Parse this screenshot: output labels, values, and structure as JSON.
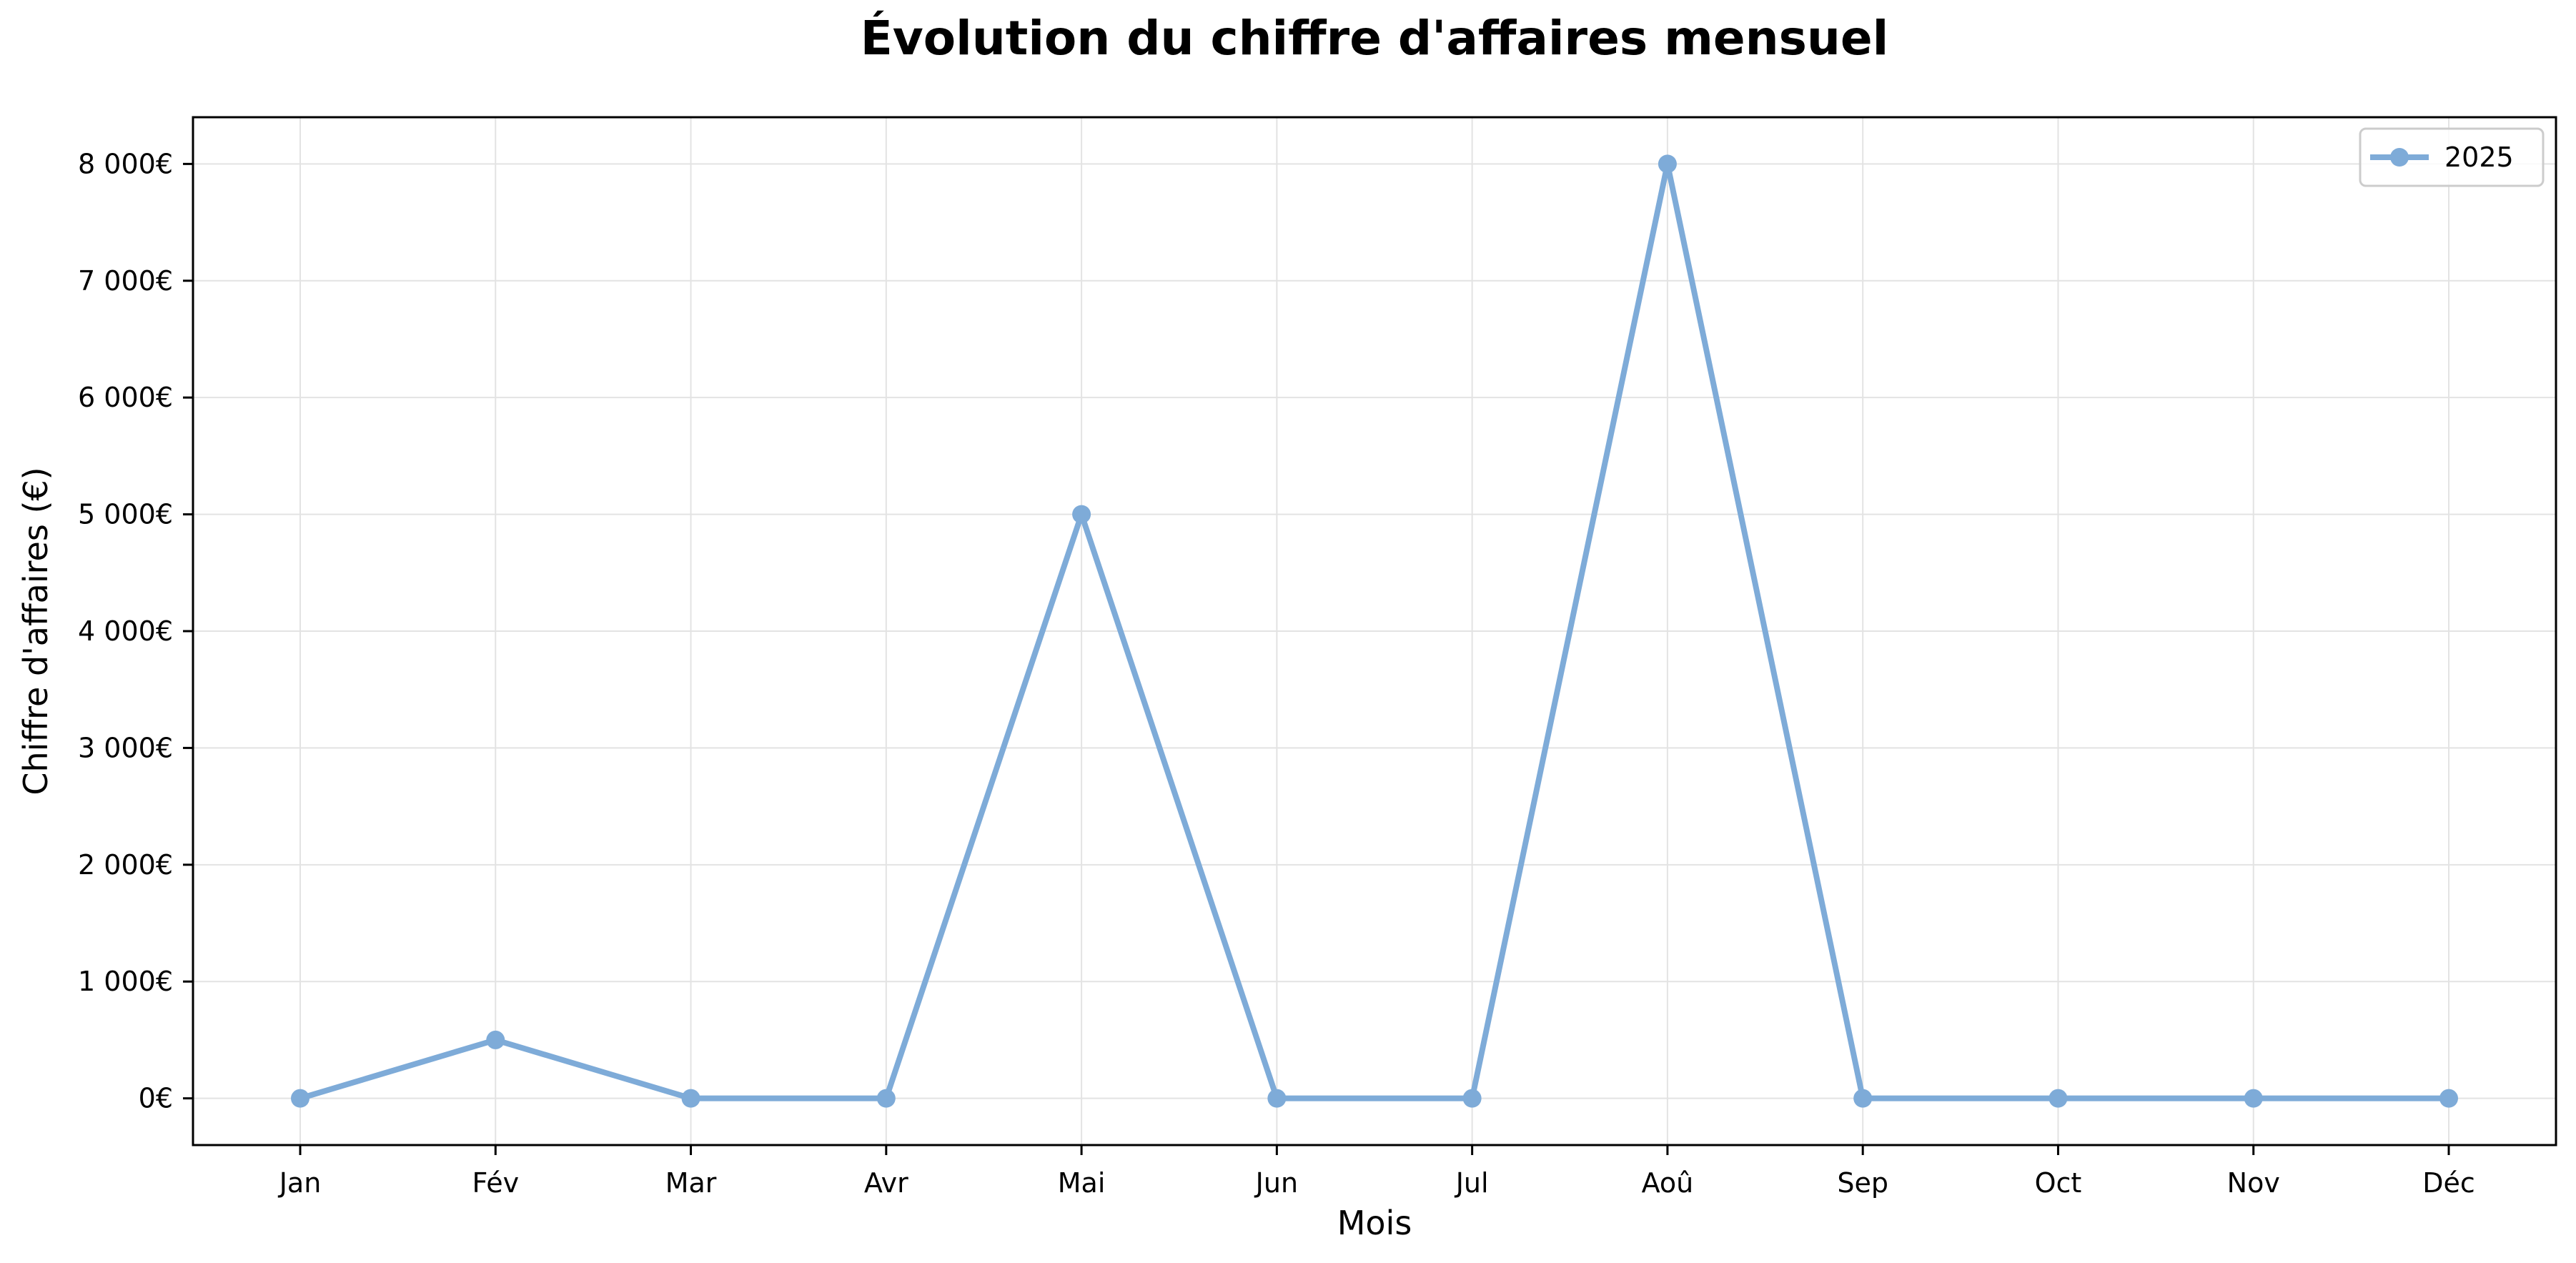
{
  "chart_data": {
    "type": "line",
    "title": "Évolution du chiffre d'affaires mensuel",
    "xlabel": "Mois",
    "ylabel": "Chiffre d'affaires (€)",
    "categories": [
      "Jan",
      "Fév",
      "Mar",
      "Avr",
      "Mai",
      "Jun",
      "Jul",
      "Aoû",
      "Sep",
      "Oct",
      "Nov",
      "Déc"
    ],
    "series": [
      {
        "name": "2025",
        "values": [
          0,
          500,
          0,
          0,
          5000,
          0,
          0,
          8000,
          0,
          0,
          0,
          0
        ],
        "color": "#7eabd8"
      }
    ],
    "ylim": [
      -400,
      8400
    ],
    "yticks": [
      0,
      1000,
      2000,
      3000,
      4000,
      5000,
      6000,
      7000,
      8000
    ],
    "ytick_labels": [
      "0€",
      "1 000€",
      "2 000€",
      "3 000€",
      "4 000€",
      "5 000€",
      "6 000€",
      "7 000€",
      "8 000€"
    ],
    "grid": true,
    "legend_position": "top-right"
  }
}
